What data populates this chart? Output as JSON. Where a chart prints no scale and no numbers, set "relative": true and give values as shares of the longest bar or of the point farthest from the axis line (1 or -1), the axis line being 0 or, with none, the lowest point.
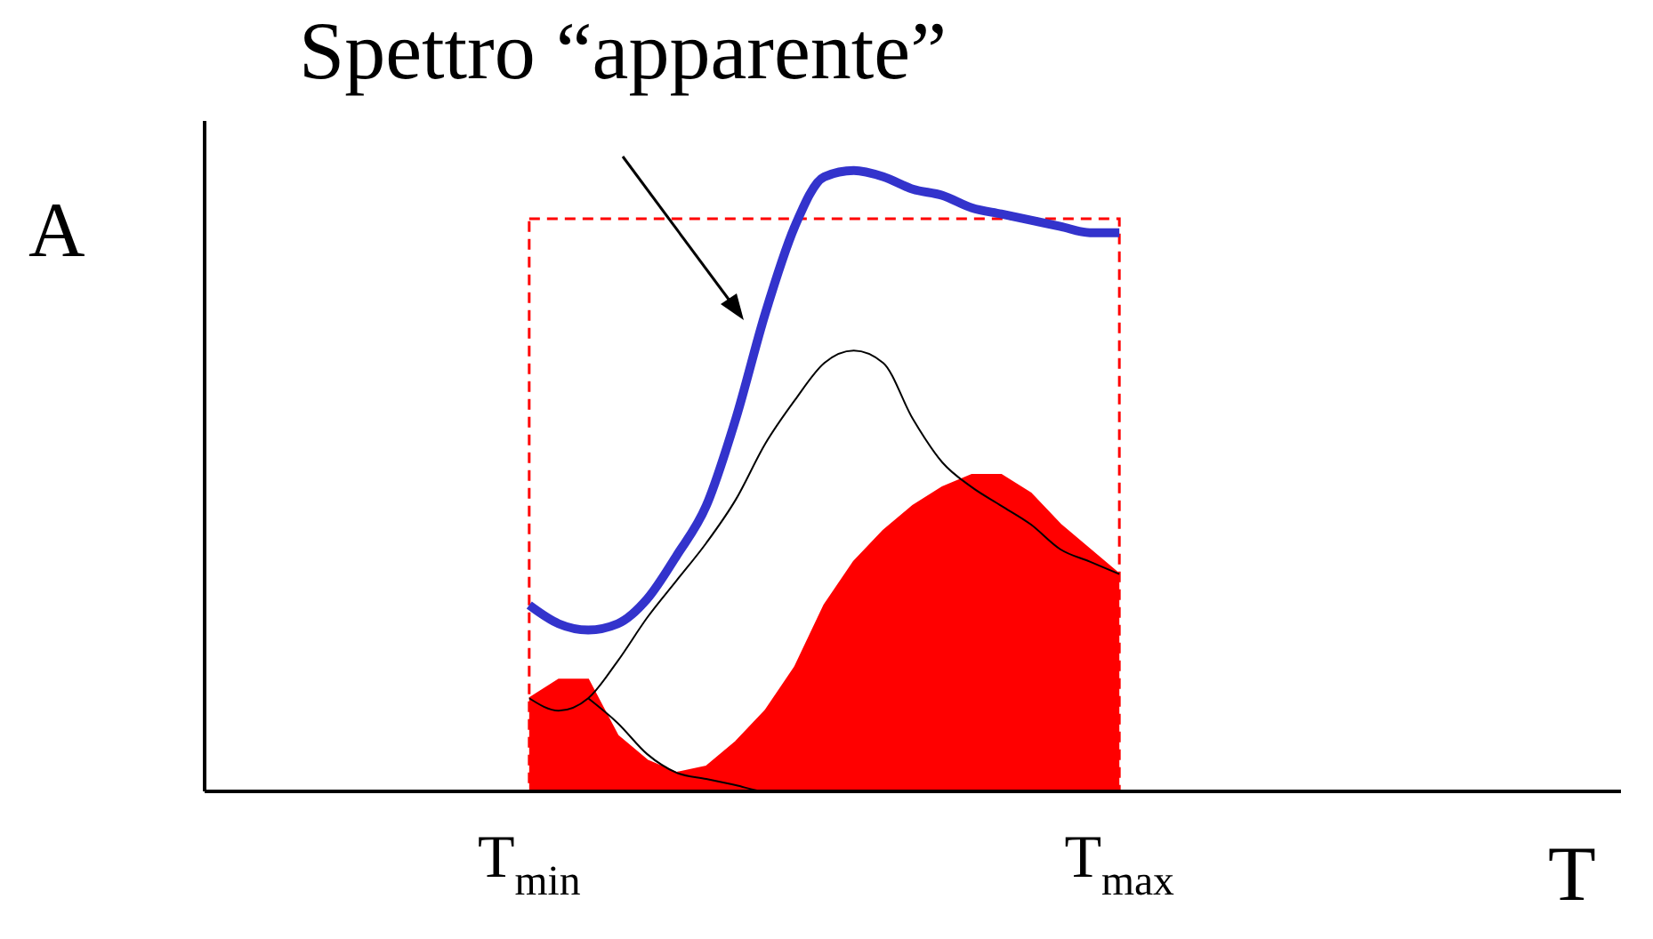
{
  "chart_data": {
    "type": "line",
    "relative": true,
    "xlabel": "T",
    "ylabel": "A",
    "annotations": [
      "Spettro “apparente”"
    ],
    "categories": [
      null,
      null,
      null,
      null,
      null,
      null,
      null,
      null,
      null,
      null,
      null,
      "T$_{min}$",
      null,
      null,
      null,
      null,
      null,
      null,
      null,
      null,
      null,
      null,
      null,
      null,
      null,
      null,
      null,
      null,
      null,
      null,
      null,
      "T$_{max}$",
      null,
      null,
      null,
      null,
      null,
      null,
      null,
      null,
      null,
      null,
      null,
      null,
      null,
      null,
      null,
      null,
      null
    ],
    "series": [
      {
        "type": "area",
        "color": "#ff0000",
        "values": [
          null,
          null,
          null,
          null,
          null,
          null,
          null,
          null,
          null,
          null,
          null,
          0.15,
          0.18,
          0.18,
          0.09,
          0.05,
          0.03,
          0.04,
          0.08,
          0.13,
          0.2,
          0.3,
          0.37,
          0.42,
          0.46,
          0.49,
          0.51,
          0.51,
          0.48,
          0.43,
          0.39,
          0.35,
          null,
          null,
          null,
          null,
          null,
          null,
          null,
          null,
          null,
          null,
          null,
          null,
          null,
          null,
          null,
          null,
          null
        ]
      },
      {
        "color": "#000000",
        "values": [
          null,
          null,
          null,
          null,
          null,
          null,
          null,
          null,
          null,
          null,
          null,
          0.15,
          0.13,
          0.15,
          0.21,
          0.28,
          0.34,
          0.4,
          0.47,
          0.56,
          0.63,
          0.69,
          0.71,
          0.69,
          0.6,
          0.53,
          0.49,
          0.46,
          0.43,
          0.39,
          0.37,
          0.35,
          null,
          null,
          null,
          null,
          null,
          null,
          null,
          null,
          null,
          null,
          null,
          null,
          null,
          null,
          null,
          null,
          null
        ]
      },
      {
        "color": "#000000",
        "values": [
          null,
          null,
          null,
          null,
          null,
          null,
          null,
          null,
          null,
          null,
          null,
          null,
          null,
          0.15,
          0.11,
          0.06,
          0.03,
          0.02,
          0.01,
          0,
          0,
          null,
          null,
          null,
          null,
          null,
          null,
          null,
          null,
          null,
          null,
          null,
          null,
          null,
          null,
          null,
          null,
          null,
          null,
          null,
          null,
          null,
          null,
          null,
          null,
          null,
          null,
          null,
          null
        ]
      },
      {
        "color": "#3333cc",
        "values": [
          null,
          null,
          null,
          null,
          null,
          null,
          null,
          null,
          null,
          null,
          null,
          0.3,
          0.27,
          0.26,
          0.27,
          0.31,
          0.38,
          0.46,
          0.6,
          0.77,
          0.91,
          0.99,
          1,
          0.99,
          0.97,
          0.96,
          0.94,
          0.93,
          0.92,
          0.91,
          0.9,
          0.9,
          null,
          null,
          null,
          null,
          null,
          null,
          null,
          null,
          null,
          null,
          null,
          null,
          null,
          null,
          null,
          null,
          null
        ]
      }
    ]
  }
}
